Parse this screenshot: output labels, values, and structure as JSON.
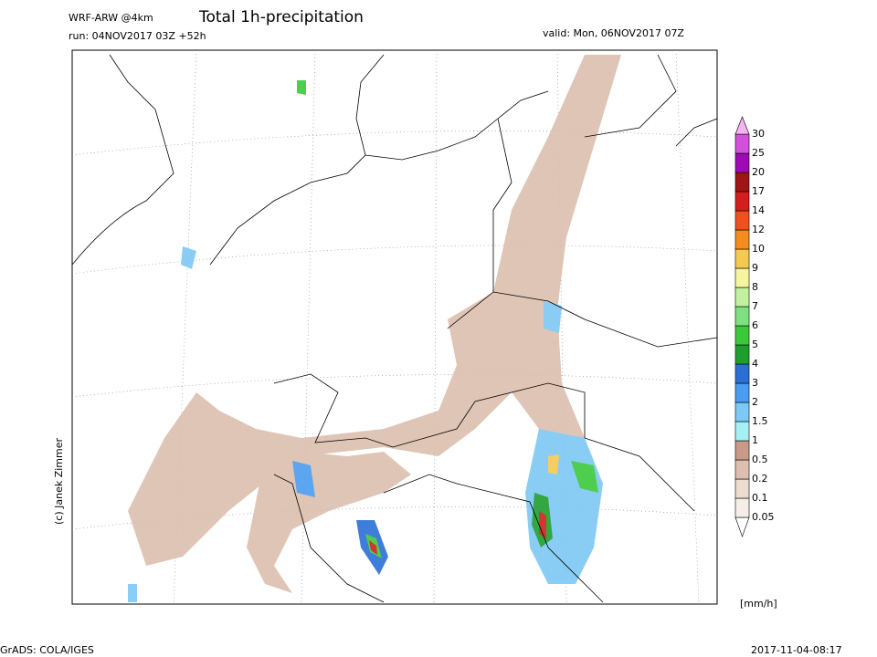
{
  "header": {
    "model": "WRF-ARW @4km",
    "title": "Total 1h-precipitation",
    "run": "run: 04NOV2017 03Z +52h",
    "valid": "valid: Mon, 06NOV2017 07Z"
  },
  "credit": "(c) Janek Zimmer",
  "colorbar": {
    "unit": "[mm/h]",
    "levels": [
      0.05,
      0.1,
      0.2,
      0.5,
      1,
      1.5,
      2,
      3,
      4,
      5,
      6,
      7,
      8,
      9,
      10,
      12,
      14,
      17,
      20,
      25,
      30
    ],
    "colors": [
      "#ffffff",
      "#f5eee8",
      "#ecdcd0",
      "#dcbfae",
      "#c99a88",
      "#a6f0f5",
      "#7dc8f5",
      "#4a9cf0",
      "#2b6fd6",
      "#1f9e2e",
      "#3cc83c",
      "#7ee07e",
      "#c0f0a0",
      "#f5f5a0",
      "#f5c850",
      "#f58c1e",
      "#f0501e",
      "#d21e1e",
      "#a01414",
      "#a00ab4",
      "#d250dc",
      "#f5b4f0"
    ]
  },
  "footer": {
    "left": "GrADS: COLA/IGES",
    "right": "2017-11-04-08:17"
  }
}
